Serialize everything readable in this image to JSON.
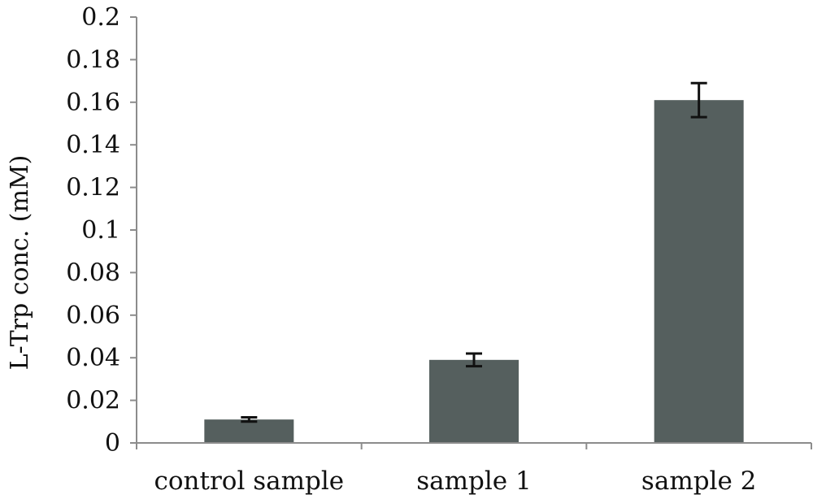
{
  "chart_data": {
    "type": "bar",
    "title": "",
    "xlabel": "",
    "ylabel": "L-Trp conc. (mM)",
    "categories": [
      "control sample",
      "sample 1",
      "sample 2"
    ],
    "values": [
      0.011,
      0.039,
      0.161
    ],
    "error": [
      0.001,
      0.003,
      0.008
    ],
    "ylim": [
      0,
      0.2
    ],
    "yticks": [
      0,
      0.02,
      0.04,
      0.06,
      0.08,
      0.1,
      0.12,
      0.14,
      0.16,
      0.18,
      0.2
    ],
    "ytick_labels": [
      "0",
      "0.02",
      "0.04",
      "0.06",
      "0.08",
      "0.1",
      "0.12",
      "0.14",
      "0.16",
      "0.18",
      "0.2"
    ],
    "grid": false,
    "legend": "none",
    "colors": {
      "bar": "#555f5e",
      "axis": "#8c8c8c",
      "error": "#111111"
    }
  }
}
